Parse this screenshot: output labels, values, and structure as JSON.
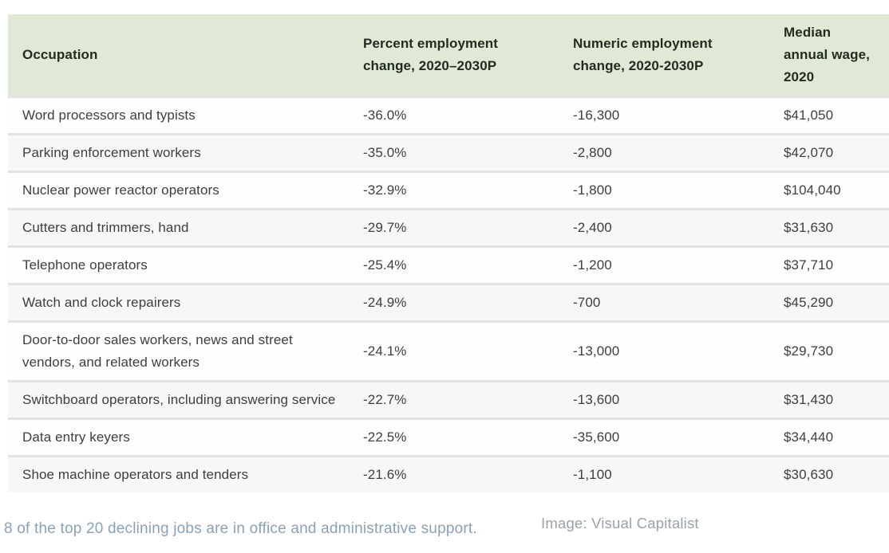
{
  "table": {
    "columns": [
      {
        "key": "occupation",
        "display": "Occupation"
      },
      {
        "key": "percent-change",
        "display": "Percent employment\nchange, 2020–2030P"
      },
      {
        "key": "numeric-change",
        "display": "Numeric employment\nchange, 2020-2030P"
      },
      {
        "key": "median-wage",
        "display": "Median\nannual wage,\n2020"
      }
    ],
    "rows": [
      [
        "Word processors and typists",
        "-36.0%",
        "-16,300",
        "$41,050"
      ],
      [
        "Parking enforcement workers",
        "-35.0%",
        "-2,800",
        "$42,070"
      ],
      [
        "Nuclear power reactor operators",
        "-32.9%",
        "-1,800",
        "$104,040"
      ],
      [
        "Cutters and trimmers, hand",
        "-29.7%",
        "-2,400",
        "$31,630"
      ],
      [
        "Telephone operators",
        "-25.4%",
        "-1,200",
        "$37,710"
      ],
      [
        "Watch and clock repairers",
        "-24.9%",
        "-700",
        "$45,290"
      ],
      [
        "Door-to-door sales workers, news and street vendors, and related workers",
        "-24.1%",
        "-13,000",
        "$29,730"
      ],
      [
        "Switchboard operators, including answering service",
        "-22.7%",
        "-13,600",
        "$31,430"
      ],
      [
        "Data entry keyers",
        "-22.5%",
        "-35,600",
        "$34,440"
      ],
      [
        "Shoe machine operators and tenders",
        "-21.6%",
        "-1,100",
        "$30,630"
      ]
    ]
  },
  "footer": {
    "caption": "8 of the top 20 declining jobs are in office and administrative support.",
    "credit": "Image: Visual Capitalist"
  },
  "colors": {
    "header_bg": "#dfe9d6",
    "header_text": "#232b23",
    "body_text": "#3e3e3e",
    "row_bg": "#fefefe",
    "row_alt_bg": "#f7f6f8",
    "row_separator": "#e3e1e4",
    "caption_text": "#8ba1b6",
    "credit_text": "#98a2ac"
  },
  "chart_data": {
    "type": "table",
    "title": "",
    "columns": [
      "Occupation",
      "Percent employment change, 2020–2030P",
      "Numeric employment change, 2020-2030P",
      "Median annual wage, 2020"
    ],
    "rows": [
      {
        "occupation": "Word processors and typists",
        "percent_change": -36.0,
        "numeric_change": -16300,
        "median_wage": 41050
      },
      {
        "occupation": "Parking enforcement workers",
        "percent_change": -35.0,
        "numeric_change": -2800,
        "median_wage": 42070
      },
      {
        "occupation": "Nuclear power reactor operators",
        "percent_change": -32.9,
        "numeric_change": -1800,
        "median_wage": 104040
      },
      {
        "occupation": "Cutters and trimmers, hand",
        "percent_change": -29.7,
        "numeric_change": -2400,
        "median_wage": 31630
      },
      {
        "occupation": "Telephone operators",
        "percent_change": -25.4,
        "numeric_change": -1200,
        "median_wage": 37710
      },
      {
        "occupation": "Watch and clock repairers",
        "percent_change": -24.9,
        "numeric_change": -700,
        "median_wage": 45290
      },
      {
        "occupation": "Door-to-door sales workers, news and street vendors, and related workers",
        "percent_change": -24.1,
        "numeric_change": -13000,
        "median_wage": 29730
      },
      {
        "occupation": "Switchboard operators, including answering service",
        "percent_change": -22.7,
        "numeric_change": -13600,
        "median_wage": 31430
      },
      {
        "occupation": "Data entry keyers",
        "percent_change": -22.5,
        "numeric_change": -35600,
        "median_wage": 34440
      },
      {
        "occupation": "Shoe machine operators and tenders",
        "percent_change": -21.6,
        "numeric_change": -1100,
        "median_wage": 30630
      }
    ],
    "caption": "8 of the top 20 declining jobs are in office and administrative support.",
    "credit": "Image: Visual Capitalist"
  }
}
